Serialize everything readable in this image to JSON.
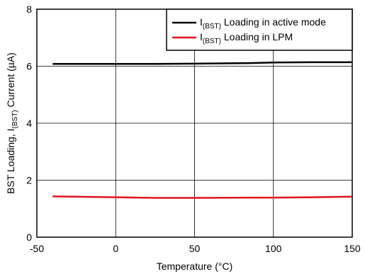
{
  "chart_data": {
    "type": "line",
    "xlabel": "Temperature (°C)",
    "ylabel_parts": {
      "pre": "BST Loading, I",
      "sub": "(BST)",
      "post": " Current (µA)"
    },
    "xlim": [
      -50,
      150
    ],
    "ylim": [
      0,
      8
    ],
    "xticks": [
      -50,
      0,
      50,
      100,
      150
    ],
    "yticks": [
      0,
      2,
      4,
      6,
      8
    ],
    "grid": true,
    "legend_position": "top-right",
    "series": [
      {
        "name_parts": {
          "pre": "I",
          "sub": "(BST)",
          "post": " Loading in active mode"
        },
        "color": "#000000",
        "x": [
          -40,
          0,
          25,
          50,
          85,
          100,
          125,
          150
        ],
        "y": [
          6.08,
          6.08,
          6.08,
          6.09,
          6.11,
          6.13,
          6.14,
          6.14
        ]
      },
      {
        "name_parts": {
          "pre": "I",
          "sub": "(BST)",
          "post": " Loading in LPM"
        },
        "color": "#e0141e",
        "x": [
          -40,
          0,
          25,
          50,
          85,
          100,
          125,
          150
        ],
        "y": [
          1.43,
          1.4,
          1.38,
          1.38,
          1.39,
          1.39,
          1.4,
          1.42
        ]
      }
    ]
  }
}
